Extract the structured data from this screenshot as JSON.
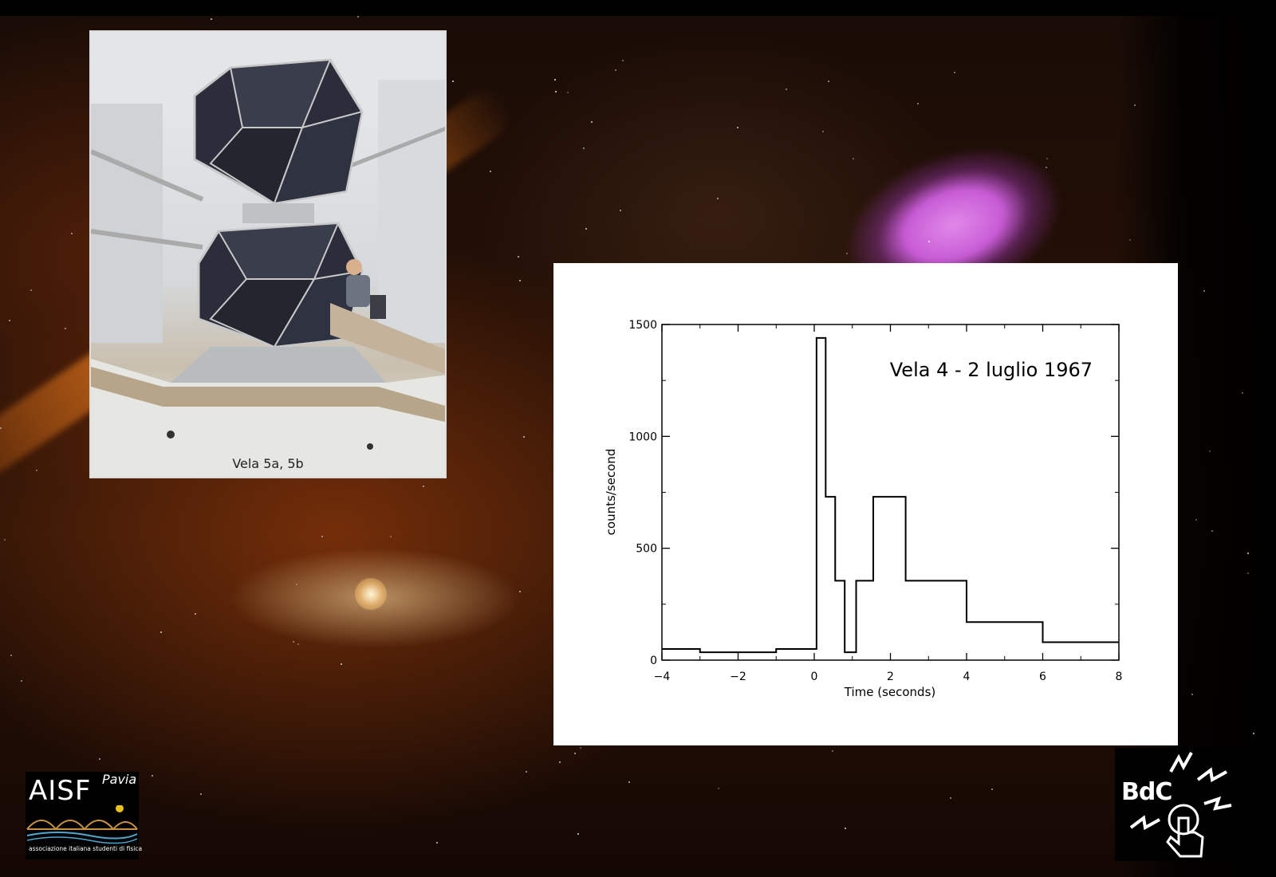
{
  "photo": {
    "caption": "Vela 5a, 5b"
  },
  "chart_data": {
    "type": "line",
    "title": "Vela 4 - 2 luglio 1967",
    "xlabel": "Time (seconds)",
    "ylabel": "counts/second",
    "xlim": [
      -4,
      8
    ],
    "ylim": [
      0,
      1500
    ],
    "x_ticks": [
      -4,
      -2,
      0,
      2,
      4,
      6,
      8
    ],
    "y_ticks": [
      0,
      500,
      1000,
      1500
    ],
    "x_tick_labels": [
      "−4",
      "−2",
      "0",
      "2",
      "4",
      "6",
      "8"
    ],
    "y_tick_labels": [
      "0",
      "500",
      "1000",
      "1500"
    ],
    "grid": false,
    "series": [
      {
        "step_edges": [
          -4,
          -3,
          -1,
          0.06,
          0.3,
          0.55,
          0.8,
          1.1,
          1.55,
          2.4,
          4,
          6,
          8
        ],
        "values": [
          50,
          35,
          50,
          1440,
          730,
          355,
          35,
          355,
          730,
          355,
          170,
          80
        ]
      }
    ]
  },
  "logos": {
    "aisf": {
      "name": "AISF",
      "city": "Pavia",
      "subtitle": "associazione italiana studenti di fisica"
    },
    "bdc": {
      "name": "BdC"
    }
  }
}
